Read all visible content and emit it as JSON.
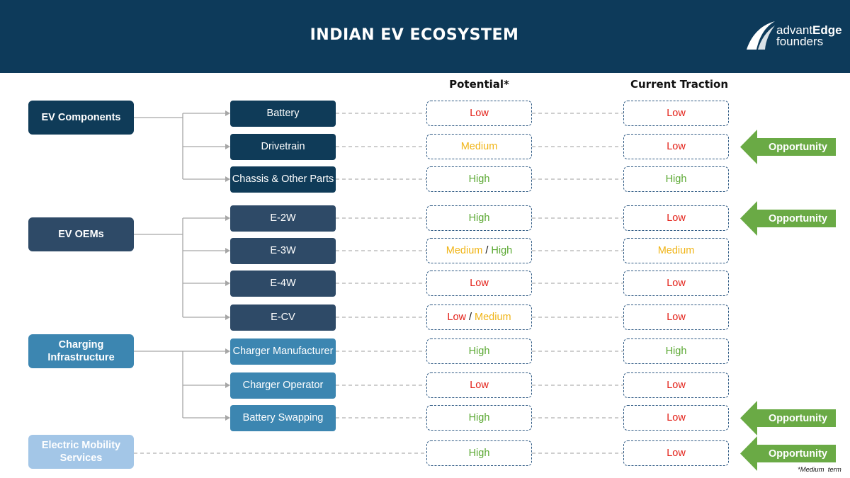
{
  "header": {
    "title": "INDIAN EV ECOSYSTEM",
    "logo": {
      "text_a": "advant",
      "text_b": "Edge",
      "text_c": "founders"
    }
  },
  "columns": {
    "potential": "Potential*",
    "current": "Current Traction"
  },
  "categories": [
    {
      "label": "EV Components",
      "color": "#0f3b58"
    },
    {
      "label": "EV OEMs",
      "color": "#2e4a67"
    },
    {
      "label": "Charging Infrastructure",
      "color": "#3c86b1"
    },
    {
      "label": "Electric Mobility Services",
      "color": "#a3c6e7"
    }
  ],
  "rows": [
    {
      "label": "Battery",
      "potential": [
        {
          "t": "Low",
          "c": "low"
        }
      ],
      "current": [
        {
          "t": "Low",
          "c": "low"
        }
      ],
      "opportunity": false
    },
    {
      "label": "Drivetrain",
      "potential": [
        {
          "t": "Medium",
          "c": "med"
        }
      ],
      "current": [
        {
          "t": "Low",
          "c": "low"
        }
      ],
      "opportunity": true
    },
    {
      "label": "Chassis & Other Parts",
      "potential": [
        {
          "t": "High",
          "c": "high"
        }
      ],
      "current": [
        {
          "t": "High",
          "c": "high"
        }
      ],
      "opportunity": false
    },
    {
      "label": "E-2W",
      "potential": [
        {
          "t": "High",
          "c": "high"
        }
      ],
      "current": [
        {
          "t": "Low",
          "c": "low"
        }
      ],
      "opportunity": true
    },
    {
      "label": "E-3W",
      "potential": [
        {
          "t": "Medium",
          "c": "med"
        },
        {
          "t": "High",
          "c": "high"
        }
      ],
      "current": [
        {
          "t": "Medium",
          "c": "med"
        }
      ],
      "opportunity": false
    },
    {
      "label": "E-4W",
      "potential": [
        {
          "t": "Low",
          "c": "low"
        }
      ],
      "current": [
        {
          "t": "Low",
          "c": "low"
        }
      ],
      "opportunity": false
    },
    {
      "label": "E-CV",
      "potential": [
        {
          "t": "Low",
          "c": "low"
        },
        {
          "t": "Medium",
          "c": "med"
        }
      ],
      "current": [
        {
          "t": "Low",
          "c": "low"
        }
      ],
      "opportunity": false
    },
    {
      "label": "Charger Manufacturer",
      "potential": [
        {
          "t": "High",
          "c": "high"
        }
      ],
      "current": [
        {
          "t": "High",
          "c": "high"
        }
      ],
      "opportunity": false
    },
    {
      "label": "Charger Operator",
      "potential": [
        {
          "t": "Low",
          "c": "low"
        }
      ],
      "current": [
        {
          "t": "Low",
          "c": "low"
        }
      ],
      "opportunity": false
    },
    {
      "label": "Battery Swapping",
      "potential": [
        {
          "t": "High",
          "c": "high"
        }
      ],
      "current": [
        {
          "t": "Low",
          "c": "low"
        }
      ],
      "opportunity": true
    },
    {
      "label": "",
      "potential": [
        {
          "t": "High",
          "c": "high"
        }
      ],
      "current": [
        {
          "t": "Low",
          "c": "low"
        }
      ],
      "opportunity": true
    }
  ],
  "opportunity_label": "Opportunity",
  "footnote": "*Medium  term"
}
